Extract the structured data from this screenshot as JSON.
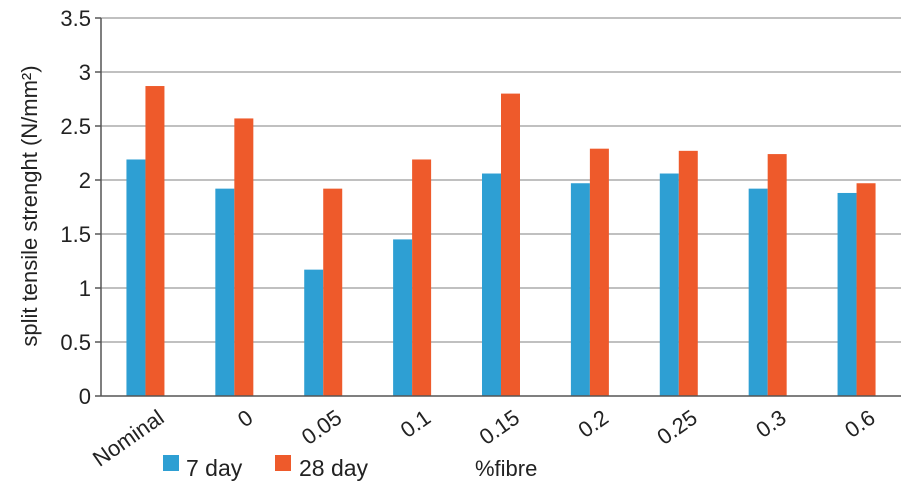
{
  "chart_data": {
    "type": "bar",
    "title": "",
    "xlabel": "%fibre",
    "ylabel": "split tensile strenght (N/mm²)",
    "ylim": [
      0,
      3.5
    ],
    "yticks": [
      "0",
      "0.5",
      "1",
      "1.5",
      "2",
      "2.5",
      "3",
      "3.5"
    ],
    "categories": [
      "Nominal",
      "0",
      "0.05",
      "0.1",
      "0.15",
      "0.2",
      "0.25",
      "0.3",
      "0.6"
    ],
    "series": [
      {
        "name": "7 day",
        "color": "#2e9fd3",
        "values": [
          2.19,
          1.92,
          1.17,
          1.45,
          2.06,
          1.97,
          2.06,
          1.92,
          1.88
        ]
      },
      {
        "name": "28 day",
        "color": "#ee5a2b",
        "values": [
          2.87,
          2.57,
          1.92,
          2.19,
          2.8,
          2.29,
          2.27,
          2.24,
          1.97
        ]
      }
    ],
    "grid": true,
    "legend_position": "bottom-left"
  }
}
